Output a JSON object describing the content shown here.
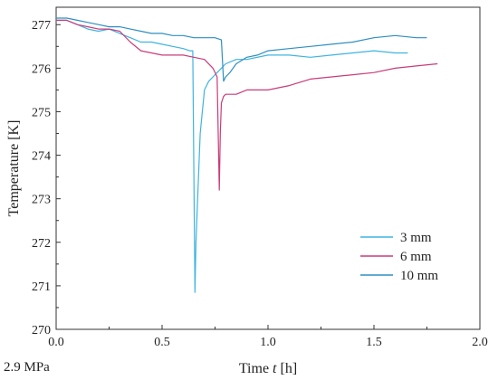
{
  "chart_data": {
    "type": "line",
    "title": "",
    "xlabel_parts": [
      "Time ",
      "t",
      " [h]"
    ],
    "ylabel": "Temperature [K]",
    "xlim": [
      0.0,
      2.0
    ],
    "ylim": [
      270,
      277.4
    ],
    "x_ticks": [
      "0.0",
      "0.5",
      "1.0",
      "1.5",
      "2.0"
    ],
    "y_ticks": [
      "270",
      "271",
      "272",
      "273",
      "274",
      "275",
      "276",
      "277"
    ],
    "annotation": "2.9 MPa",
    "legend_position": "lower-right",
    "grid": false,
    "series": [
      {
        "name": "3 mm",
        "color": "#3fb3e0",
        "x": [
          0.0,
          0.05,
          0.1,
          0.15,
          0.2,
          0.25,
          0.3,
          0.35,
          0.4,
          0.45,
          0.5,
          0.55,
          0.6,
          0.63,
          0.645,
          0.655,
          0.66,
          0.68,
          0.7,
          0.72,
          0.74,
          0.76,
          0.78,
          0.8,
          0.85,
          0.9,
          1.0,
          1.1,
          1.2,
          1.3,
          1.4,
          1.5,
          1.6,
          1.66
        ],
        "y": [
          277.1,
          277.1,
          277.0,
          276.9,
          276.85,
          276.9,
          276.8,
          276.7,
          276.6,
          276.6,
          276.55,
          276.5,
          276.45,
          276.4,
          276.4,
          270.85,
          272.0,
          274.5,
          275.5,
          275.7,
          275.8,
          275.9,
          276.0,
          276.1,
          276.2,
          276.2,
          276.3,
          276.3,
          276.25,
          276.3,
          276.35,
          276.4,
          276.35,
          276.35
        ]
      },
      {
        "name": "6 mm",
        "color": "#c83c78",
        "x": [
          0.0,
          0.05,
          0.1,
          0.15,
          0.2,
          0.25,
          0.3,
          0.35,
          0.4,
          0.45,
          0.5,
          0.55,
          0.6,
          0.65,
          0.7,
          0.74,
          0.76,
          0.77,
          0.775,
          0.78,
          0.79,
          0.8,
          0.85,
          0.9,
          1.0,
          1.1,
          1.2,
          1.3,
          1.4,
          1.5,
          1.6,
          1.7,
          1.8
        ],
        "y": [
          277.1,
          277.1,
          277.0,
          276.95,
          276.9,
          276.9,
          276.85,
          276.6,
          276.4,
          276.35,
          276.3,
          276.3,
          276.3,
          276.25,
          276.2,
          276.0,
          275.8,
          273.2,
          274.5,
          275.2,
          275.35,
          275.4,
          275.4,
          275.5,
          275.5,
          275.6,
          275.75,
          275.8,
          275.85,
          275.9,
          276.0,
          276.05,
          276.1
        ]
      },
      {
        "name": "10 mm",
        "color": "#2f8fc0",
        "x": [
          0.0,
          0.05,
          0.1,
          0.15,
          0.2,
          0.25,
          0.3,
          0.35,
          0.4,
          0.45,
          0.5,
          0.55,
          0.6,
          0.65,
          0.7,
          0.75,
          0.78,
          0.79,
          0.8,
          0.82,
          0.85,
          0.9,
          0.95,
          1.0,
          1.1,
          1.2,
          1.3,
          1.4,
          1.5,
          1.6,
          1.7,
          1.75
        ],
        "y": [
          277.15,
          277.15,
          277.1,
          277.05,
          277.0,
          276.95,
          276.95,
          276.9,
          276.85,
          276.8,
          276.8,
          276.75,
          276.75,
          276.7,
          276.7,
          276.7,
          276.65,
          275.7,
          275.8,
          275.9,
          276.1,
          276.25,
          276.3,
          276.4,
          276.45,
          276.5,
          276.55,
          276.6,
          276.7,
          276.75,
          276.7,
          276.7
        ]
      }
    ]
  }
}
